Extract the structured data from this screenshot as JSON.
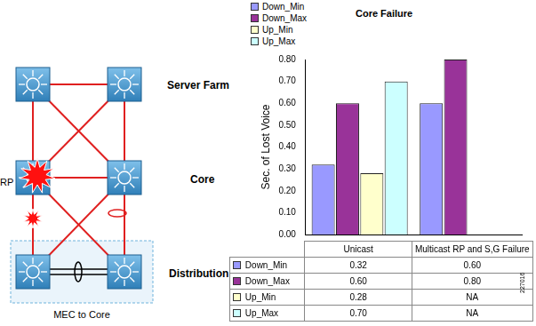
{
  "chart_data": {
    "type": "bar",
    "title": "Core Failure",
    "y_label": "Sec. of Lost Voice",
    "categories": [
      "Unicast",
      "Multicast RP and S,G Failure"
    ],
    "series": [
      {
        "name": "Down_Min",
        "color": "#9999ff",
        "values": [
          0.32,
          0.6
        ],
        "value_labels": [
          "0.32",
          "0.60"
        ]
      },
      {
        "name": "Down_Max",
        "color": "#993399",
        "values": [
          0.6,
          0.8
        ],
        "value_labels": [
          "0.60",
          "0.80"
        ]
      },
      {
        "name": "Up_Min",
        "color": "#ffffcc",
        "values": [
          0.28,
          null
        ],
        "value_labels": [
          "0.28",
          "NA"
        ]
      },
      {
        "name": "Up_Max",
        "color": "#ccffff",
        "values": [
          0.7,
          null
        ],
        "value_labels": [
          "0.70",
          "NA"
        ]
      }
    ],
    "ylim": [
      0,
      0.8
    ],
    "yticks": [
      {
        "value": 0,
        "label": "0.00"
      },
      {
        "value": 0.1,
        "label": "0.10"
      },
      {
        "value": 0.2,
        "label": "0.20"
      },
      {
        "value": 0.3,
        "label": "0.30"
      },
      {
        "value": 0.4,
        "label": "0.40"
      },
      {
        "value": 0.5,
        "label": "0.50"
      },
      {
        "value": 0.6,
        "label": "0.60"
      },
      {
        "value": 0.7,
        "label": "0.70"
      },
      {
        "value": 0.8,
        "label": "0.80"
      }
    ],
    "legend": "top-left",
    "tick_labels": "y",
    "grid": false
  },
  "diagram": {
    "tier_labels": [
      "Server Farm",
      "Core",
      "Distribution"
    ],
    "rp_label": "RP",
    "group_label": "MEC to Core"
  },
  "figure_id": "227016"
}
